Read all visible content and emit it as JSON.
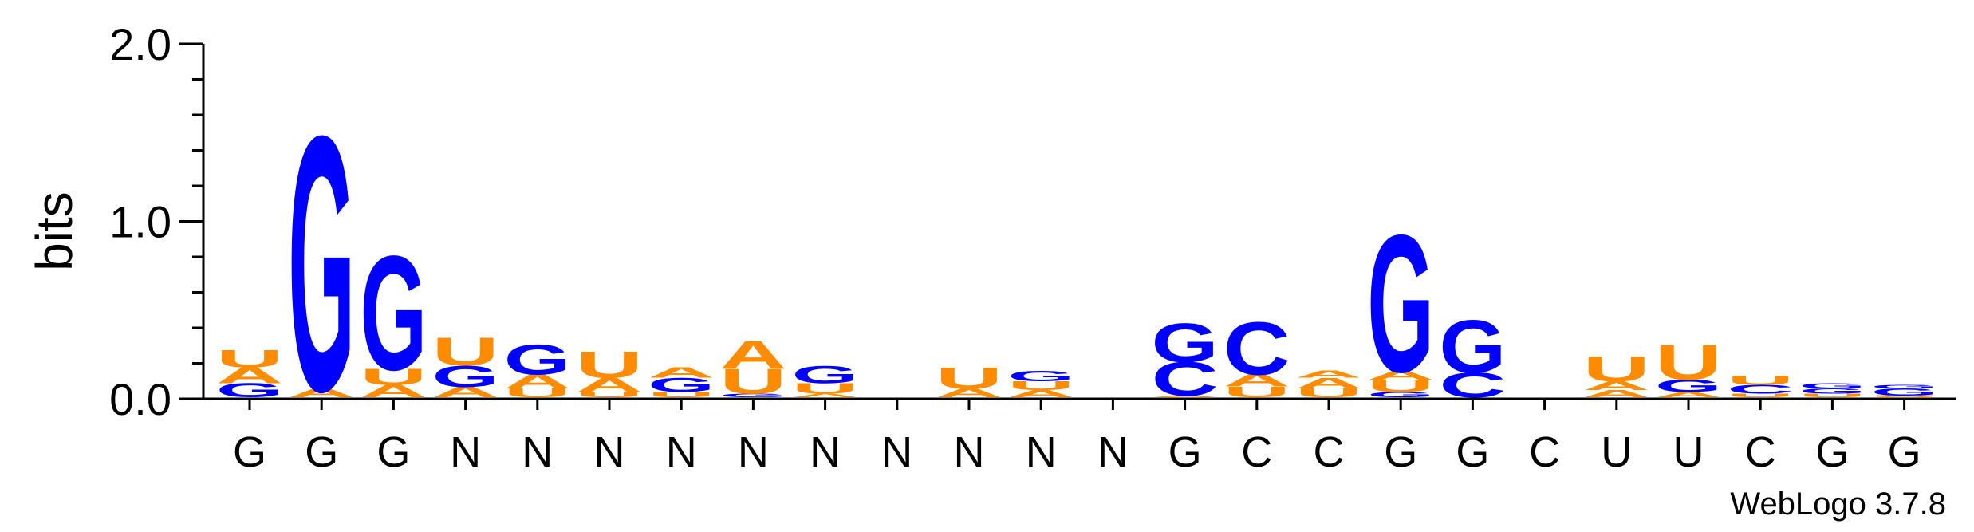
{
  "chart_data": {
    "type": "sequence-logo",
    "ylabel": "bits",
    "ylim": [
      0,
      2.0
    ],
    "yticks": [
      "0.0",
      "1.0",
      "2.0"
    ],
    "colors": {
      "A": "#ff8c00",
      "U": "#ff8c00",
      "G": "#0000ff",
      "C": "#0000ff"
    },
    "consensus": [
      "G",
      "G",
      "G",
      "N",
      "N",
      "N",
      "N",
      "N",
      "N",
      "N",
      "N",
      "N",
      "N",
      "G",
      "C",
      "C",
      "G",
      "G",
      "C",
      "U",
      "U",
      "C",
      "G",
      "G"
    ],
    "positions": [
      {
        "stack": [
          [
            "G",
            0.08
          ],
          [
            "A",
            0.09
          ],
          [
            "U",
            0.1
          ]
        ]
      },
      {
        "stack": [
          [
            "A",
            0.05
          ],
          [
            "G",
            1.45
          ]
        ]
      },
      {
        "stack": [
          [
            "A",
            0.07
          ],
          [
            "U",
            0.09
          ],
          [
            "G",
            0.65
          ]
        ]
      },
      {
        "stack": [
          [
            "A",
            0.06
          ],
          [
            "G",
            0.12
          ],
          [
            "U",
            0.16
          ]
        ]
      },
      {
        "stack": [
          [
            "U",
            0.05
          ],
          [
            "A",
            0.08
          ],
          [
            "G",
            0.17
          ]
        ]
      },
      {
        "stack": [
          [
            "U",
            0.03
          ],
          [
            "A",
            0.08
          ],
          [
            "U",
            0.15
          ]
        ]
      },
      {
        "stack": [
          [
            "U",
            0.03
          ],
          [
            "G",
            0.08
          ],
          [
            "A",
            0.06
          ]
        ]
      },
      {
        "stack": [
          [
            "G",
            0.02
          ],
          [
            "U",
            0.14
          ],
          [
            "A",
            0.16
          ]
        ]
      },
      {
        "stack": [
          [
            "A",
            0.02
          ],
          [
            "U",
            0.06
          ],
          [
            "G",
            0.1
          ]
        ]
      },
      {
        "stack": []
      },
      {
        "stack": [
          [
            "A",
            0.05
          ],
          [
            "U",
            0.12
          ]
        ]
      },
      {
        "stack": [
          [
            "A",
            0.04
          ],
          [
            "U",
            0.05
          ],
          [
            "G",
            0.06
          ]
        ]
      },
      {
        "stack": []
      },
      {
        "stack": [
          [
            "A",
            0.01
          ],
          [
            "C",
            0.19
          ],
          [
            "G",
            0.22
          ]
        ]
      },
      {
        "stack": [
          [
            "U",
            0.06
          ],
          [
            "A",
            0.07
          ],
          [
            "C",
            0.3
          ]
        ]
      },
      {
        "stack": [
          [
            "U",
            0.05
          ],
          [
            "A",
            0.06
          ],
          [
            "A",
            0.04
          ]
        ]
      },
      {
        "stack": [
          [
            "G",
            0.03
          ],
          [
            "U",
            0.07
          ],
          [
            "A",
            0.05
          ],
          [
            "G",
            0.78
          ]
        ]
      },
      {
        "stack": [
          [
            "C",
            0.14
          ],
          [
            "G",
            0.3
          ]
        ]
      },
      {
        "stack": []
      },
      {
        "stack": [
          [
            "A",
            0.04
          ],
          [
            "A",
            0.05
          ],
          [
            "U",
            0.14
          ]
        ]
      },
      {
        "stack": [
          [
            "A",
            0.03
          ],
          [
            "G",
            0.07
          ],
          [
            "U",
            0.2
          ]
        ]
      },
      {
        "stack": [
          [
            "U",
            0.02
          ],
          [
            "C",
            0.05
          ],
          [
            "U",
            0.05
          ]
        ]
      },
      {
        "stack": [
          [
            "U",
            0.02
          ],
          [
            "G",
            0.03
          ],
          [
            "G",
            0.03
          ]
        ]
      },
      {
        "stack": [
          [
            "U",
            0.01
          ],
          [
            "G",
            0.04
          ],
          [
            "G",
            0.02
          ]
        ]
      }
    ]
  },
  "credit": "WebLogo 3.7.8"
}
